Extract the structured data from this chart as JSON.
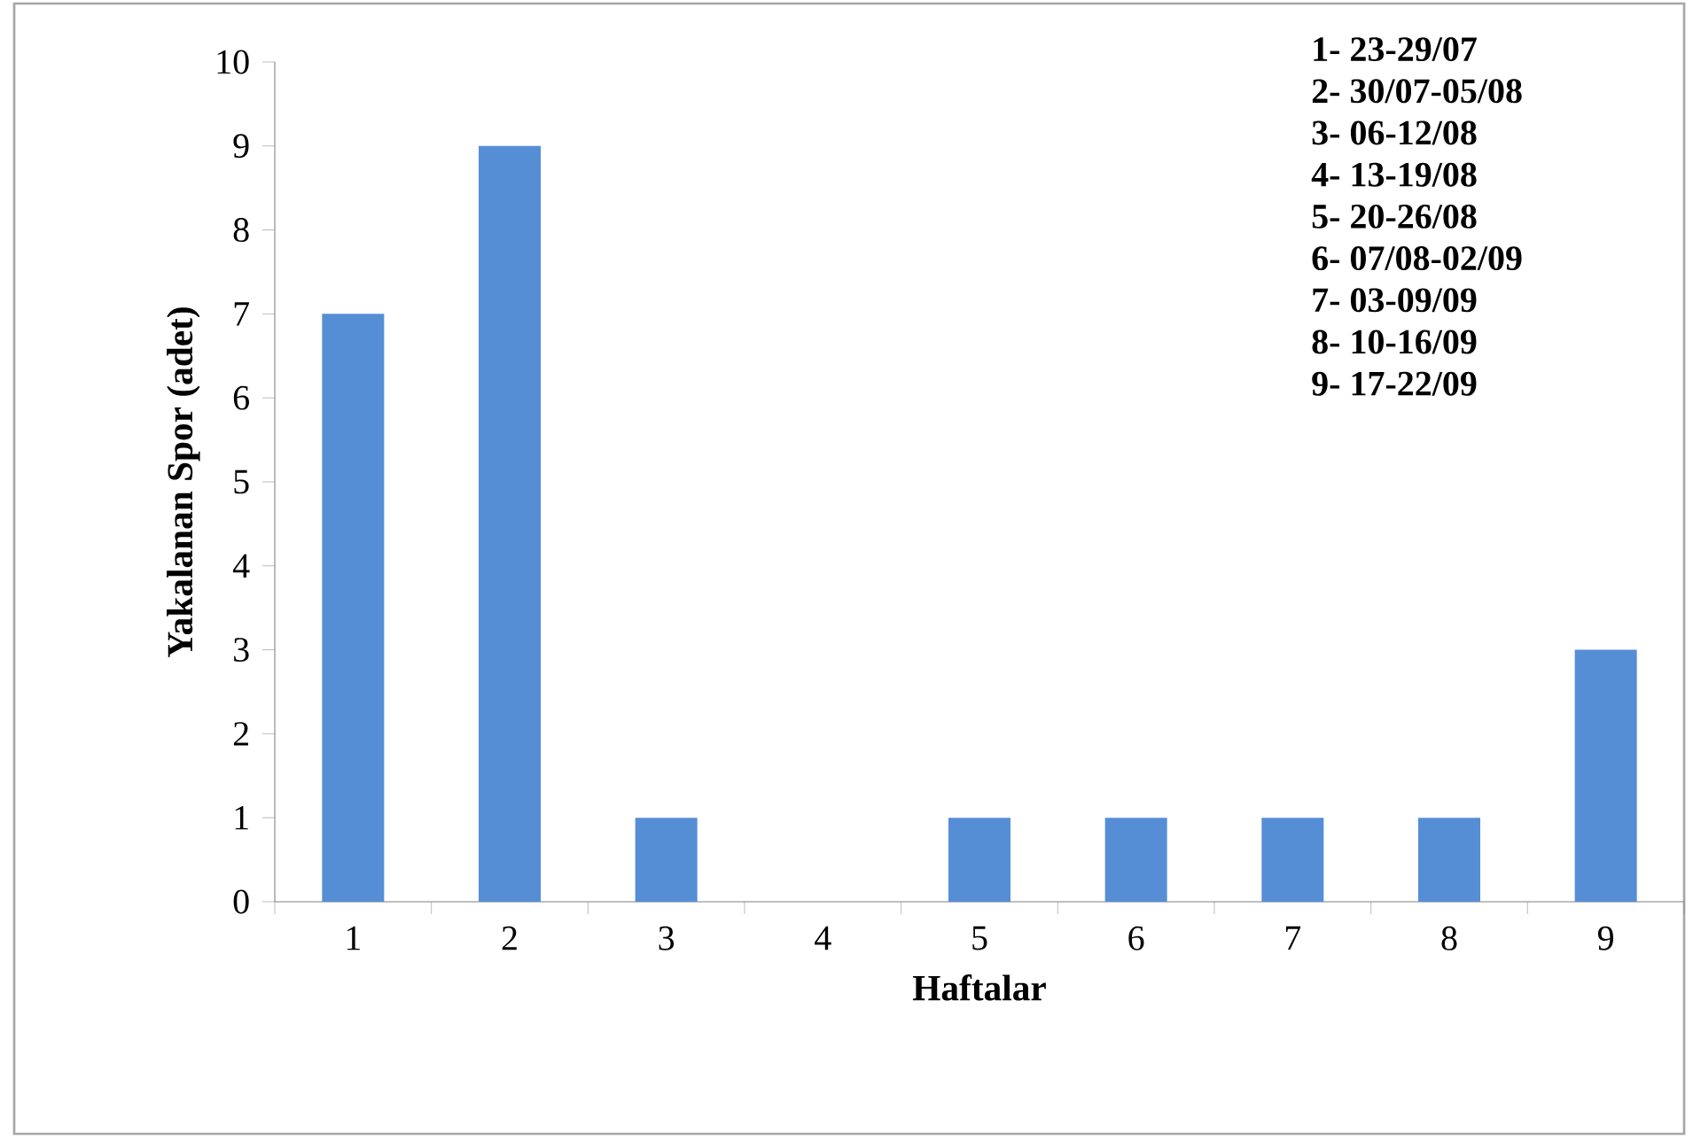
{
  "chart_data": {
    "type": "bar",
    "xlabel": "Haftalar",
    "ylabel": "Yakalanan Spor (adet)",
    "categories": [
      "1",
      "2",
      "3",
      "4",
      "5",
      "6",
      "7",
      "8",
      "9"
    ],
    "values": [
      7,
      9,
      1,
      0,
      1,
      1,
      1,
      1,
      3
    ],
    "color": "#558ed5",
    "ylim": [
      0,
      10
    ],
    "yticks": [
      0,
      1,
      2,
      3,
      4,
      5,
      6,
      7,
      8,
      9,
      10
    ],
    "annotations": [
      "1- 23-29/07",
      "2- 30/07-05/08",
      "3- 06-12/08",
      "4- 13-19/08",
      "5- 20-26/08",
      "6- 07/08-02/09",
      "7- 03-09/09",
      "8- 10-16/09",
      "9- 17-22/09"
    ]
  }
}
